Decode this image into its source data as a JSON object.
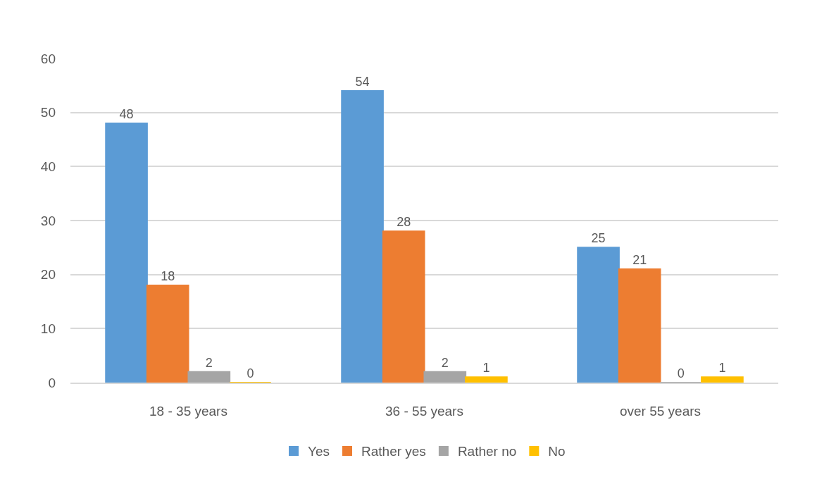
{
  "chart_data": {
    "type": "bar",
    "categories": [
      "18 - 35 years",
      "36 - 55 years",
      "over 55 years"
    ],
    "series": [
      {
        "name": "Yes",
        "color": "#5b9bd5",
        "values": [
          48,
          54,
          25
        ]
      },
      {
        "name": "Rather yes",
        "color": "#ed7d31",
        "values": [
          18,
          28,
          21
        ]
      },
      {
        "name": "Rather no",
        "color": "#a5a5a5",
        "values": [
          2,
          2,
          0
        ]
      },
      {
        "name": "No",
        "color": "#ffc000",
        "values": [
          0,
          1,
          1
        ]
      }
    ],
    "ylim": [
      0,
      60
    ],
    "yticks": [
      0,
      10,
      20,
      30,
      40,
      50,
      60
    ],
    "grid": "y",
    "legend": "bottom",
    "data_labels": true
  }
}
